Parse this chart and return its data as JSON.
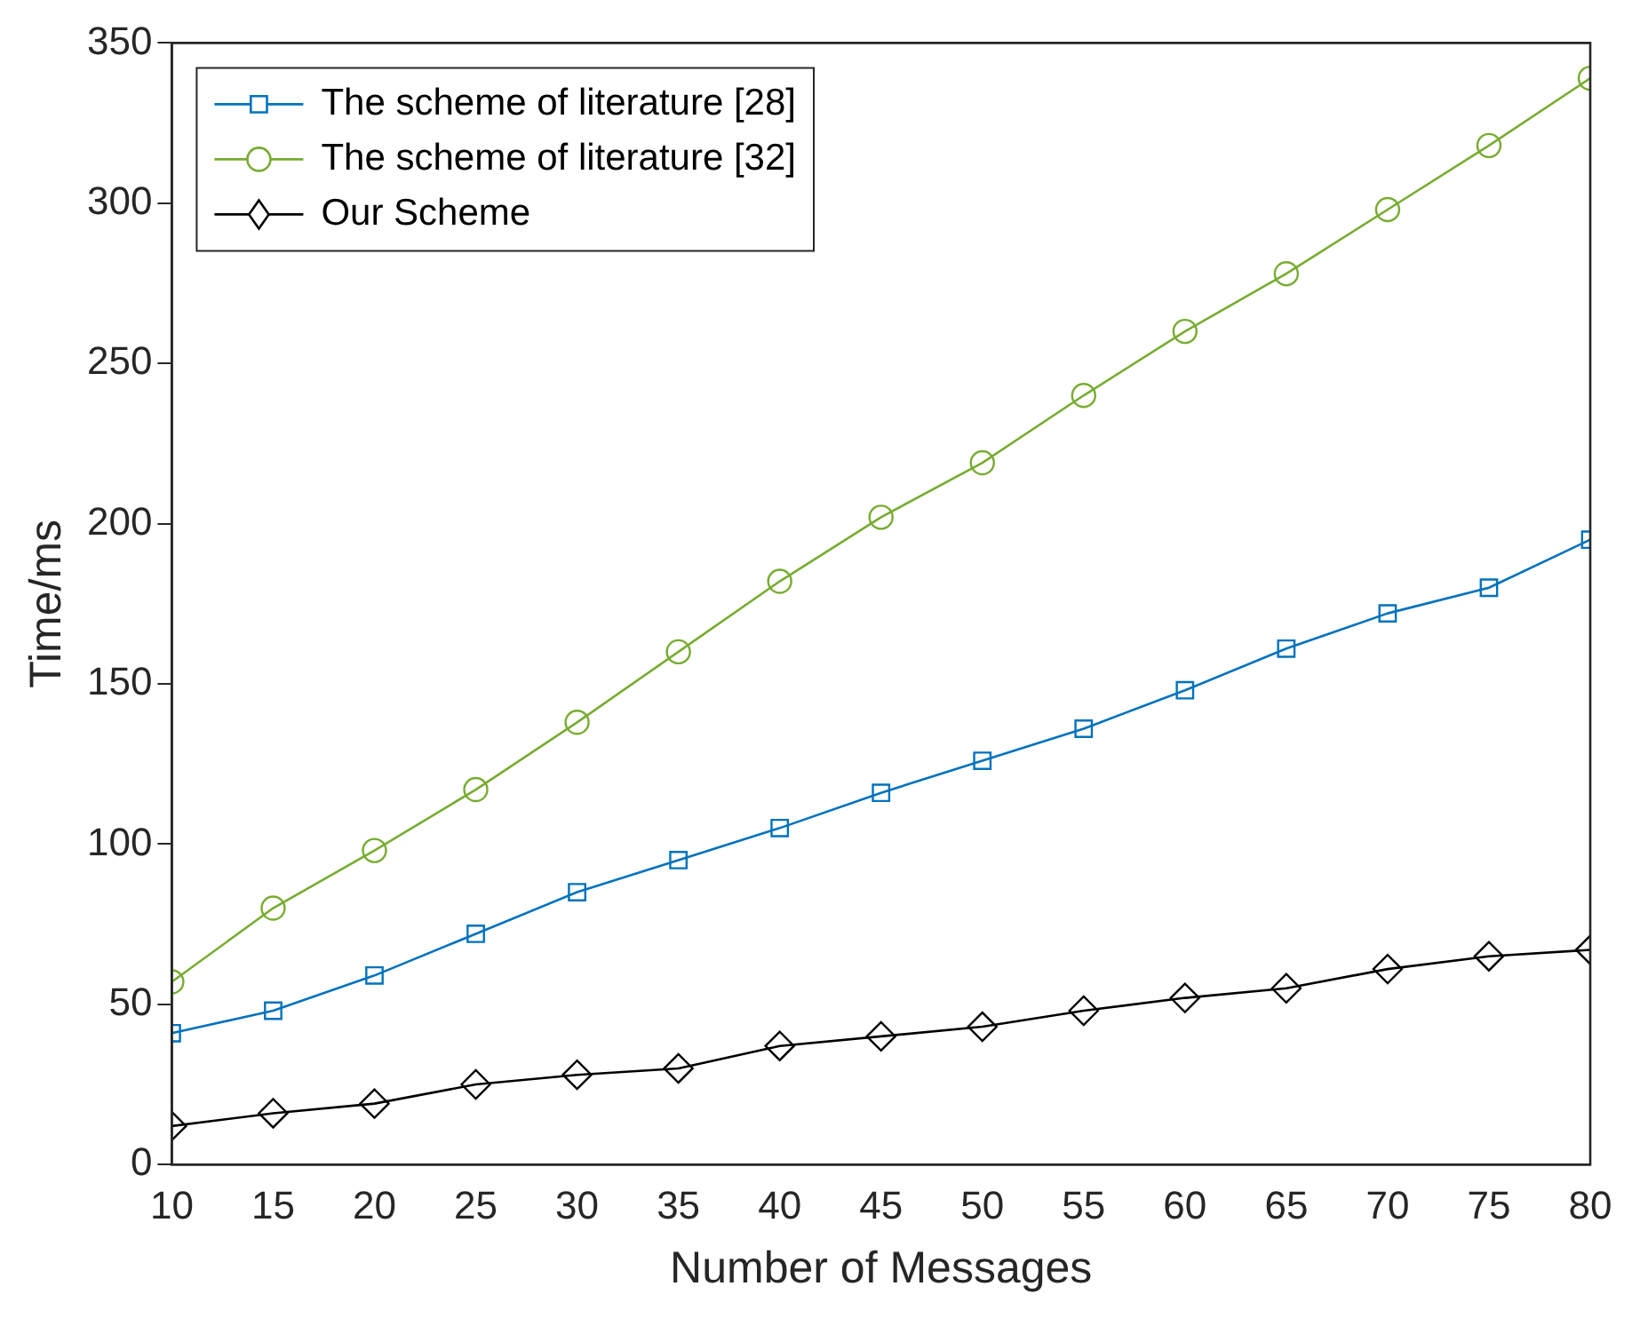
{
  "chart_data": {
    "type": "line",
    "xlabel": "Number of Messages",
    "ylabel": "Time/ms",
    "x": [
      10,
      15,
      20,
      25,
      30,
      35,
      40,
      45,
      50,
      55,
      60,
      65,
      70,
      75,
      80
    ],
    "series": [
      {
        "name": "The scheme of literature [28]",
        "color": "#0072bd",
        "marker": "square",
        "values": [
          41,
          48,
          59,
          72,
          85,
          95,
          105,
          116,
          126,
          136,
          148,
          161,
          172,
          180,
          195
        ]
      },
      {
        "name": "The scheme of literature [32]",
        "color": "#77ac30",
        "marker": "circle",
        "values": [
          57,
          80,
          98,
          117,
          138,
          160,
          182,
          202,
          219,
          240,
          260,
          278,
          298,
          318,
          339
        ]
      },
      {
        "name": "Our Scheme",
        "color": "#000000",
        "marker": "diamond",
        "values": [
          12,
          16,
          19,
          25,
          28,
          30,
          37,
          40,
          43,
          48,
          52,
          55,
          61,
          65,
          67
        ]
      }
    ],
    "xlim": [
      10,
      80
    ],
    "xticks": [
      10,
      15,
      20,
      25,
      30,
      35,
      40,
      45,
      50,
      55,
      60,
      65,
      70,
      75,
      80
    ],
    "ylim": [
      0,
      350
    ],
    "yticks": [
      0,
      50,
      100,
      150,
      200,
      250,
      300,
      350
    ],
    "grid": false,
    "legend": "top left",
    "line_style": "solid"
  }
}
